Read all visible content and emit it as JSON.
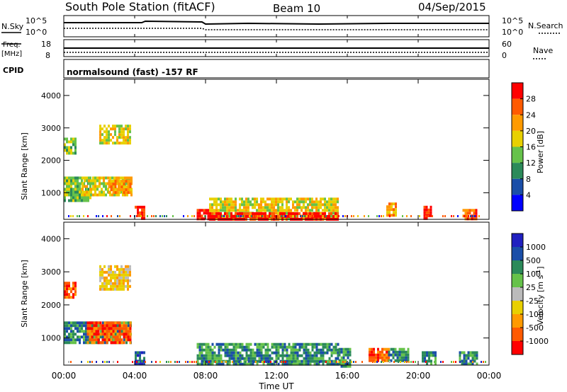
{
  "header": {
    "station": "South Pole Station (fitACF)",
    "beam": "Beam 10",
    "date": "04/Sep/2015"
  },
  "panels": {
    "nsky_label": "N.Sky",
    "nsky_ticks": [
      "10^5",
      "10^0"
    ],
    "nsearch_label": "N.Search",
    "nsearch_ticks": [
      "10^5",
      "10^0"
    ],
    "freq_label_1": "Freq.",
    "freq_label_2": "[MHz]",
    "freq_ticks": [
      "18",
      "8"
    ],
    "nave_label": "Nave",
    "nave_ticks": [
      "60",
      "0"
    ],
    "cpid_label": "CPID",
    "cpid_text": "normalsound (fast) -157 RF"
  },
  "colors": {
    "power": [
      "#0000ff",
      "#1a4ea8",
      "#2b8a5a",
      "#66c24a",
      "#e8d000",
      "#ff9a00",
      "#ff5a00",
      "#ff0000"
    ],
    "velocity": [
      "#ff0000",
      "#ff5a00",
      "#ff9a00",
      "#e8d000",
      "#bbbbbb",
      "#66c24a",
      "#2b8a5a",
      "#1a4ea8",
      "#2020c0"
    ]
  },
  "chart_data": [
    {
      "type": "heatmap",
      "title": "Power",
      "xlabel": "",
      "ylabel": "Slant Range [km]",
      "x_ticks": [
        "00:00",
        "04:00",
        "08:00",
        "12:00",
        "16:00",
        "20:00",
        "00:00"
      ],
      "y_ticks": [
        "1000",
        "2000",
        "3000",
        "4000"
      ],
      "ylim": [
        180,
        4500
      ],
      "colorbar": {
        "label": "Power [dB]",
        "ticks": [
          "4",
          "8",
          "12",
          "16",
          "20",
          "24",
          "28"
        ],
        "range": [
          0,
          32
        ]
      },
      "regions": [
        {
          "t0": 0.0,
          "t1": 1.5,
          "r0": 800,
          "r1": 1500,
          "level": 3
        },
        {
          "t0": 1.0,
          "t1": 3.8,
          "r0": 900,
          "r1": 1500,
          "level": 4
        },
        {
          "t0": 2.5,
          "t1": 3.8,
          "r0": 1000,
          "r1": 1400,
          "level": 5
        },
        {
          "t0": 0.0,
          "t1": 0.7,
          "r0": 2200,
          "r1": 2700,
          "level": 3
        },
        {
          "t0": 2.0,
          "t1": 3.7,
          "r0": 2500,
          "r1": 3100,
          "level": 4
        },
        {
          "t0": 4.0,
          "t1": 4.5,
          "r0": 180,
          "r1": 600,
          "level": 7
        },
        {
          "t0": 7.5,
          "t1": 8.2,
          "r0": 180,
          "r1": 500,
          "level": 7
        },
        {
          "t0": 8.2,
          "t1": 15.5,
          "r0": 180,
          "r1": 850,
          "level": 4
        },
        {
          "t0": 8.2,
          "t1": 15.5,
          "r0": 180,
          "r1": 400,
          "level": 7
        },
        {
          "t0": 18.2,
          "t1": 18.8,
          "r0": 300,
          "r1": 700,
          "level": 5
        },
        {
          "t0": 20.3,
          "t1": 20.7,
          "r0": 200,
          "r1": 600,
          "level": 7
        },
        {
          "t0": 22.5,
          "t1": 23.3,
          "r0": 200,
          "r1": 500,
          "level": 6
        }
      ]
    },
    {
      "type": "heatmap",
      "title": "Velocity",
      "xlabel": "Time UT",
      "ylabel": "Slant Range [km]",
      "x_ticks": [
        "00:00",
        "04:00",
        "08:00",
        "12:00",
        "16:00",
        "20:00",
        "00:00"
      ],
      "y_ticks": [
        "1000",
        "2000",
        "3000",
        "4000"
      ],
      "ylim": [
        180,
        4500
      ],
      "colorbar": {
        "label": "Velocity [m s^-1]",
        "ticks": [
          "-1000",
          "-500",
          "-100",
          "-25",
          "25",
          "100",
          "500",
          "1000"
        ]
      },
      "regions": [
        {
          "t0": 0.0,
          "t1": 3.8,
          "r0": 900,
          "r1": 1500,
          "level": 6
        },
        {
          "t0": 1.3,
          "t1": 3.8,
          "r0": 900,
          "r1": 1500,
          "level": 1
        },
        {
          "t0": 0.0,
          "t1": 0.7,
          "r0": 2200,
          "r1": 2700,
          "level": 1
        },
        {
          "t0": 2.0,
          "t1": 3.7,
          "r0": 2500,
          "r1": 3200,
          "level": 3
        },
        {
          "t0": 4.0,
          "t1": 4.5,
          "r0": 180,
          "r1": 600,
          "level": 7
        },
        {
          "t0": 7.5,
          "t1": 15.5,
          "r0": 180,
          "r1": 850,
          "level": 6
        },
        {
          "t0": 15.5,
          "t1": 16.2,
          "r0": 180,
          "r1": 700,
          "level": 6
        },
        {
          "t0": 17.2,
          "t1": 18.3,
          "r0": 300,
          "r1": 700,
          "level": 1
        },
        {
          "t0": 18.3,
          "t1": 19.5,
          "r0": 300,
          "r1": 700,
          "level": 6
        },
        {
          "t0": 20.2,
          "t1": 21.0,
          "r0": 200,
          "r1": 600,
          "level": 6
        },
        {
          "t0": 22.3,
          "t1": 23.3,
          "r0": 200,
          "r1": 600,
          "level": 6
        }
      ]
    }
  ]
}
